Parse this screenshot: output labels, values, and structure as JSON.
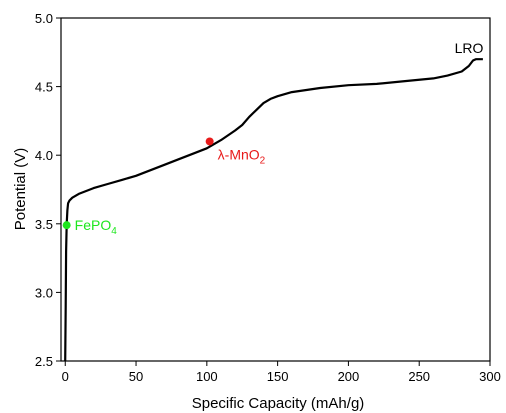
{
  "chart_data": {
    "type": "line",
    "xlabel": "Specific Capacity (mAh/g)",
    "ylabel": "Potential (V)",
    "xlim": [
      -3,
      300
    ],
    "ylim": [
      2.5,
      5.0
    ],
    "xticks": [
      0,
      50,
      100,
      150,
      200,
      250,
      300
    ],
    "yticks": [
      2.5,
      3.0,
      3.5,
      4.0,
      4.5,
      5.0
    ],
    "xtick_labels": [
      "0",
      "50",
      "100",
      "150",
      "200",
      "250",
      "300"
    ],
    "ytick_labels": [
      "2.5",
      "3.0",
      "3.5",
      "4.0",
      "4.5",
      "5.0"
    ],
    "grid": false,
    "series": [
      {
        "color": "#000000",
        "x": [
          0,
          0.3,
          0.6,
          1.0,
          1.5,
          2.0,
          3,
          5,
          10,
          20,
          30,
          40,
          50,
          60,
          70,
          80,
          90,
          100,
          110,
          120,
          125,
          130,
          135,
          140,
          145,
          150,
          160,
          180,
          200,
          220,
          240,
          260,
          270,
          280,
          285,
          288,
          290,
          295
        ],
        "y": [
          2.5,
          2.9,
          3.3,
          3.5,
          3.6,
          3.65,
          3.67,
          3.69,
          3.72,
          3.76,
          3.79,
          3.82,
          3.85,
          3.89,
          3.93,
          3.97,
          4.01,
          4.05,
          4.11,
          4.18,
          4.22,
          4.28,
          4.33,
          4.38,
          4.41,
          4.43,
          4.46,
          4.49,
          4.51,
          4.52,
          4.54,
          4.56,
          4.58,
          4.61,
          4.65,
          4.69,
          4.7,
          4.7
        ]
      }
    ],
    "points": [
      {
        "label": "FePO",
        "subscript": "4",
        "x": 1.0,
        "y": 3.49,
        "color": "#1ee61e"
      },
      {
        "label": "λ-MnO",
        "subscript": "2",
        "x": 102,
        "y": 4.1,
        "color": "#e81a1a"
      }
    ],
    "annotations": [
      {
        "text": "LRO",
        "x": 275,
        "y": 4.78,
        "color": "#000000"
      }
    ]
  }
}
